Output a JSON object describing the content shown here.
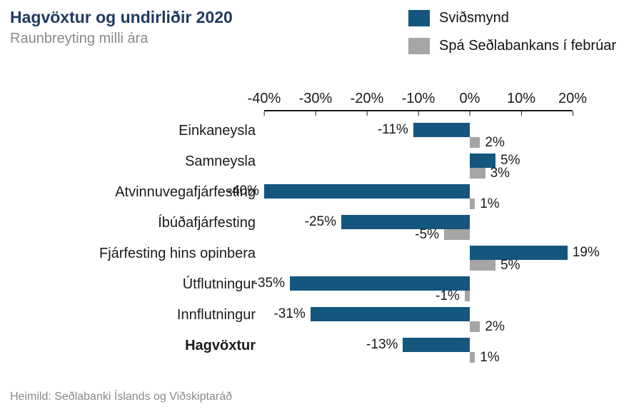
{
  "header": {
    "title": "Hagvöxtur og undirliðir 2020",
    "subtitle": "Raunbreyting milli ára"
  },
  "legend": [
    {
      "label": "Sviðsmynd",
      "color": "#15567e"
    },
    {
      "label": "Spá Seðlabankans í febrúar",
      "color": "#a5a5a5"
    }
  ],
  "footer": {
    "source": "Heimild: Seðlabanki Íslands og Viðskiptaráð"
  },
  "colors": {
    "scenario_blue": "#15567e",
    "forecast_gray": "#a5a5a5",
    "title_navy": "#1f3a5f",
    "muted_gray": "#8a8a8a"
  },
  "chart_data": {
    "type": "bar",
    "orientation": "horizontal",
    "title": "Hagvöxtur og undirliðir 2020",
    "subtitle": "Raunbreyting milli ára",
    "categories": [
      "Einkaneysla",
      "Samneysla",
      "Atvinnuvegafjárfesting",
      "Íbúðafjárfesting",
      "Fjárfesting hins opinbera",
      "Útflutningur",
      "Innflutningur",
      "Hagvöxtur"
    ],
    "bold_categories": [
      "Hagvöxtur"
    ],
    "series": [
      {
        "name": "Sviðsmynd",
        "color": "#15567e",
        "values": [
          -11,
          5,
          -40,
          -25,
          19,
          -35,
          -31,
          -13
        ]
      },
      {
        "name": "Spá Seðlabankans í febrúar",
        "color": "#a5a5a5",
        "values": [
          2,
          3,
          1,
          -5,
          5,
          -1,
          2,
          1
        ]
      }
    ],
    "value_suffix": "%",
    "xlim": [
      -40,
      20
    ],
    "tick_values": [
      -40,
      -30,
      -20,
      -10,
      0,
      10,
      20
    ],
    "ticks": [
      "-40%",
      "-30%",
      "-20%",
      "-10%",
      "0%",
      "10%",
      "20%"
    ],
    "grid": false,
    "legend_position": "top-right",
    "data_labels": true
  }
}
